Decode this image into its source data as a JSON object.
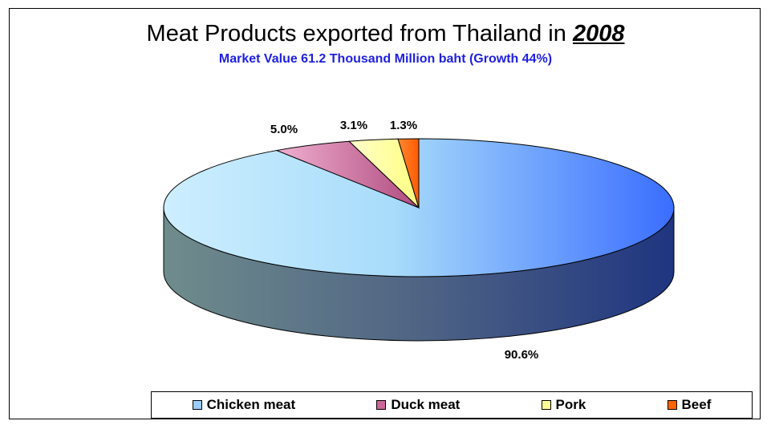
{
  "chart_data": {
    "type": "pie",
    "title": "Meat Products exported from Thailand in",
    "title_year": "2008",
    "subtitle": "Market Value 61.2 Thousand Million baht (Growth 44%)",
    "categories": [
      "Chicken meat",
      "Duck meat",
      "Pork",
      "Beef"
    ],
    "values": [
      90.6,
      5.0,
      3.1,
      1.3
    ],
    "value_labels": [
      "90.6%",
      "5.0%",
      "3.1%",
      "1.3%"
    ],
    "colors": [
      "#66a3ff",
      "#cc6699",
      "#ffff99",
      "#ff6600"
    ],
    "legend_position": "bottom"
  }
}
